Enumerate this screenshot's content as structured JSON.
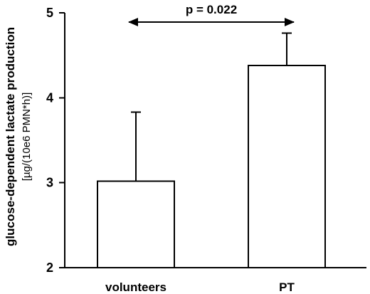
{
  "chart_data": {
    "type": "bar",
    "categories": [
      "volunteers",
      "PT"
    ],
    "values": [
      3.02,
      4.38
    ],
    "error_upper": [
      3.83,
      4.76
    ],
    "ylim": [
      2,
      5
    ],
    "yticks": [
      "2",
      "3",
      "4",
      "5"
    ],
    "ylabel": "glucose-dependent lactate production",
    "ylabel_unit": "[µg/(10e6 PMN*h)]",
    "xlabel": "",
    "annotation": {
      "text": "p = 0.022",
      "from": "volunteers",
      "to": "PT"
    },
    "grid": false
  }
}
